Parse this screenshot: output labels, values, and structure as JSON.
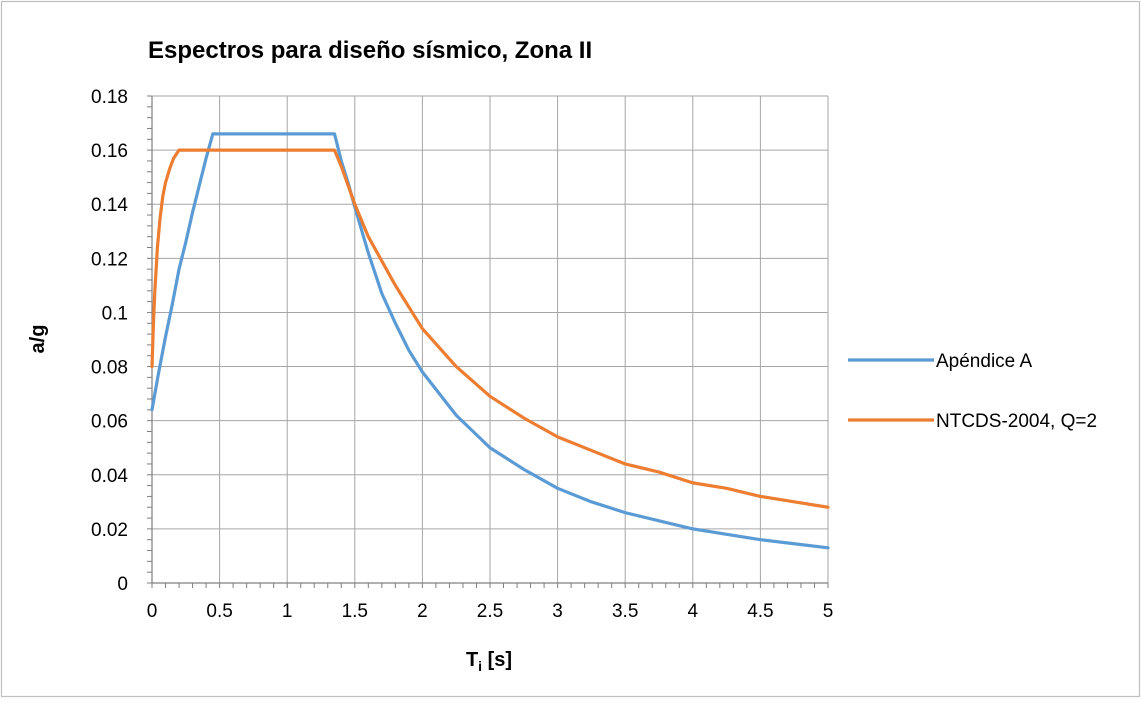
{
  "chart_data": {
    "type": "line",
    "title": "Espectros para diseño sísmico, Zona II",
    "xlabel": {
      "main": "T",
      "sub": "i",
      "rest": " [s]"
    },
    "ylabel": "a/g",
    "xlim": [
      0,
      5
    ],
    "ylim": [
      0,
      0.18
    ],
    "x_ticks": [
      "0",
      "0.5",
      "1",
      "1.5",
      "2",
      "2.5",
      "3",
      "3.5",
      "4",
      "4.5",
      "5"
    ],
    "y_ticks": [
      "0",
      "0.02",
      "0.04",
      "0.06",
      "0.08",
      "0.1",
      "0.12",
      "0.14",
      "0.16",
      "0.18"
    ],
    "grid": true,
    "legend_position": "right",
    "series": [
      {
        "name": "Apéndice A",
        "color": "#5B9BD5",
        "points": [
          [
            0,
            0.064
          ],
          [
            0.05,
            0.078
          ],
          [
            0.1,
            0.091
          ],
          [
            0.15,
            0.103
          ],
          [
            0.2,
            0.116
          ],
          [
            0.25,
            0.126
          ],
          [
            0.3,
            0.137
          ],
          [
            0.35,
            0.147
          ],
          [
            0.4,
            0.157
          ],
          [
            0.45,
            0.166
          ],
          [
            0.6,
            0.166
          ],
          [
            0.8,
            0.166
          ],
          [
            1.0,
            0.166
          ],
          [
            1.2,
            0.166
          ],
          [
            1.35,
            0.166
          ],
          [
            1.4,
            0.156
          ],
          [
            1.45,
            0.148
          ],
          [
            1.5,
            0.139
          ],
          [
            1.6,
            0.122
          ],
          [
            1.7,
            0.107
          ],
          [
            1.8,
            0.096
          ],
          [
            1.9,
            0.086
          ],
          [
            2.0,
            0.078
          ],
          [
            2.25,
            0.062
          ],
          [
            2.5,
            0.05
          ],
          [
            2.75,
            0.042
          ],
          [
            3.0,
            0.035
          ],
          [
            3.25,
            0.03
          ],
          [
            3.5,
            0.026
          ],
          [
            3.75,
            0.023
          ],
          [
            4.0,
            0.02
          ],
          [
            4.25,
            0.018
          ],
          [
            4.5,
            0.016
          ],
          [
            4.75,
            0.0145
          ],
          [
            5.0,
            0.013
          ]
        ]
      },
      {
        "name": "NTCDS-2004, Q=2",
        "color": "#ED7D31",
        "points": [
          [
            0,
            0.08
          ],
          [
            0.01,
            0.095
          ],
          [
            0.02,
            0.107
          ],
          [
            0.04,
            0.124
          ],
          [
            0.06,
            0.135
          ],
          [
            0.08,
            0.143
          ],
          [
            0.1,
            0.148
          ],
          [
            0.13,
            0.153
          ],
          [
            0.16,
            0.157
          ],
          [
            0.2,
            0.16
          ],
          [
            0.5,
            0.16
          ],
          [
            0.8,
            0.16
          ],
          [
            1.1,
            0.16
          ],
          [
            1.35,
            0.16
          ],
          [
            1.4,
            0.154
          ],
          [
            1.5,
            0.14
          ],
          [
            1.6,
            0.128
          ],
          [
            1.8,
            0.11
          ],
          [
            2.0,
            0.094
          ],
          [
            2.25,
            0.08
          ],
          [
            2.5,
            0.069
          ],
          [
            2.75,
            0.061
          ],
          [
            3.0,
            0.054
          ],
          [
            3.25,
            0.049
          ],
          [
            3.5,
            0.044
          ],
          [
            3.75,
            0.041
          ],
          [
            4.0,
            0.037
          ],
          [
            4.25,
            0.035
          ],
          [
            4.5,
            0.032
          ],
          [
            4.75,
            0.03
          ],
          [
            5.0,
            0.028
          ]
        ]
      }
    ]
  }
}
